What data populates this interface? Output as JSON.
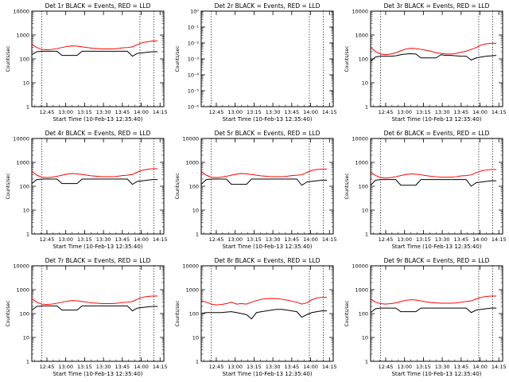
{
  "figure": {
    "xlabel": "Start Time (10-Feb-13 12:35:40)",
    "ylabel": "Counts/sec",
    "x_tick_labels": [
      "12:45",
      "13:00",
      "13:15",
      "13:30",
      "13:45",
      "14:00",
      "14:15"
    ],
    "y_tick_labels_decade": [
      "1",
      "10",
      "100",
      "1000",
      "10000"
    ],
    "y_tick_labels_small": [
      "10⁰",
      "10⁻¹",
      "10⁻²",
      "10⁻³",
      "10⁻⁴",
      "10⁻⁵",
      "10⁻⁶"
    ],
    "colors": {
      "events": "#000000",
      "lld": "#ff0000",
      "background": "#ffffff"
    }
  },
  "chart_data": [
    {
      "type": "line",
      "title": "Det 1r  BLACK = Events, RED = LLD",
      "ylim": [
        1,
        10000
      ],
      "yscale": "log",
      "x_minutes": [
        0,
        4,
        8,
        12,
        16,
        20,
        24,
        28,
        32,
        36,
        40,
        44,
        48,
        52,
        56,
        60,
        64,
        68,
        72,
        76,
        80,
        84,
        88,
        92,
        96,
        100
      ],
      "series": [
        {
          "name": "Events",
          "values": [
            150,
            200,
            210,
            210,
            210,
            210,
            140,
            140,
            140,
            140,
            210,
            210,
            210,
            210,
            210,
            210,
            210,
            210,
            210,
            210,
            130,
            170,
            180,
            190,
            200,
            200
          ]
        },
        {
          "name": "LLD",
          "values": [
            400,
            300,
            250,
            240,
            250,
            270,
            300,
            330,
            350,
            340,
            320,
            300,
            280,
            270,
            260,
            260,
            260,
            270,
            290,
            300,
            320,
            400,
            480,
            520,
            560,
            560
          ]
        }
      ]
    },
    {
      "type": "line",
      "title": "Det 2r  BLACK = Events, RED = LLD",
      "ylim": [
        1e-06,
        1
      ],
      "yscale": "log",
      "x_minutes": [],
      "series": []
    },
    {
      "type": "line",
      "title": "Det 3r  BLACK = Events, RED = LLD",
      "ylim": [
        1,
        10000
      ],
      "yscale": "log",
      "x_minutes": [
        0,
        4,
        8,
        12,
        16,
        20,
        24,
        28,
        32,
        36,
        40,
        44,
        48,
        52,
        56,
        60,
        64,
        68,
        72,
        76,
        80,
        84,
        88,
        92,
        96,
        100
      ],
      "series": [
        {
          "name": "Events",
          "values": [
            80,
            120,
            130,
            130,
            130,
            135,
            150,
            160,
            165,
            160,
            110,
            110,
            110,
            110,
            150,
            140,
            140,
            135,
            130,
            130,
            90,
            110,
            120,
            130,
            135,
            140
          ]
        },
        {
          "name": "LLD",
          "values": [
            300,
            200,
            160,
            150,
            160,
            180,
            220,
            260,
            280,
            270,
            250,
            230,
            210,
            180,
            170,
            160,
            160,
            170,
            190,
            210,
            250,
            300,
            380,
            430,
            450,
            450
          ]
        }
      ]
    },
    {
      "type": "line",
      "title": "Det 4r  BLACK = Events, RED = LLD",
      "ylim": [
        1,
        10000
      ],
      "yscale": "log",
      "x_minutes": [
        0,
        4,
        8,
        12,
        16,
        20,
        24,
        28,
        32,
        36,
        40,
        44,
        48,
        52,
        56,
        60,
        64,
        68,
        72,
        76,
        80,
        84,
        88,
        92,
        96,
        100
      ],
      "series": [
        {
          "name": "Events",
          "values": [
            130,
            190,
            200,
            200,
            200,
            200,
            130,
            130,
            130,
            130,
            200,
            200,
            200,
            200,
            200,
            200,
            200,
            200,
            200,
            200,
            120,
            160,
            170,
            180,
            190,
            190
          ]
        },
        {
          "name": "LLD",
          "values": [
            420,
            290,
            240,
            230,
            240,
            260,
            290,
            320,
            340,
            330,
            310,
            290,
            270,
            260,
            250,
            250,
            250,
            260,
            280,
            290,
            310,
            390,
            470,
            510,
            540,
            540
          ]
        }
      ]
    },
    {
      "type": "line",
      "title": "Det 5r  BLACK = Events, RED = LLD",
      "ylim": [
        1,
        10000
      ],
      "yscale": "log",
      "x_minutes": [
        0,
        4,
        8,
        12,
        16,
        20,
        24,
        28,
        32,
        36,
        40,
        44,
        48,
        52,
        56,
        60,
        64,
        68,
        72,
        76,
        80,
        84,
        88,
        92,
        96,
        100
      ],
      "series": [
        {
          "name": "Events",
          "values": [
            120,
            190,
            200,
            200,
            200,
            200,
            120,
            120,
            120,
            120,
            200,
            200,
            200,
            200,
            200,
            200,
            200,
            200,
            200,
            200,
            110,
            150,
            160,
            170,
            180,
            180
          ]
        },
        {
          "name": "LLD",
          "values": [
            400,
            290,
            240,
            230,
            240,
            260,
            290,
            320,
            340,
            330,
            310,
            290,
            270,
            260,
            250,
            250,
            250,
            260,
            280,
            290,
            300,
            380,
            460,
            500,
            520,
            520
          ]
        }
      ]
    },
    {
      "type": "line",
      "title": "Det 6r  BLACK = Events, RED = LLD",
      "ylim": [
        1,
        10000
      ],
      "yscale": "log",
      "x_minutes": [
        0,
        4,
        8,
        12,
        16,
        20,
        24,
        28,
        32,
        36,
        40,
        44,
        48,
        52,
        56,
        60,
        64,
        68,
        72,
        76,
        80,
        84,
        88,
        92,
        96,
        100
      ],
      "series": [
        {
          "name": "Events",
          "values": [
            110,
            180,
            190,
            190,
            190,
            190,
            110,
            110,
            110,
            110,
            190,
            190,
            190,
            190,
            190,
            190,
            190,
            190,
            190,
            190,
            100,
            140,
            150,
            160,
            170,
            170
          ]
        },
        {
          "name": "LLD",
          "values": [
            380,
            280,
            230,
            220,
            230,
            250,
            280,
            310,
            330,
            320,
            300,
            280,
            260,
            250,
            240,
            240,
            240,
            250,
            270,
            280,
            300,
            370,
            440,
            480,
            500,
            500
          ]
        }
      ]
    },
    {
      "type": "line",
      "title": "Det 7r  BLACK = Events, RED = LLD",
      "ylim": [
        1,
        10000
      ],
      "yscale": "log",
      "x_minutes": [
        0,
        4,
        8,
        12,
        16,
        20,
        24,
        28,
        32,
        36,
        40,
        44,
        48,
        52,
        56,
        60,
        64,
        68,
        72,
        76,
        80,
        84,
        88,
        92,
        96,
        100
      ],
      "series": [
        {
          "name": "Events",
          "values": [
            140,
            200,
            210,
            210,
            210,
            210,
            140,
            140,
            140,
            140,
            210,
            210,
            210,
            210,
            210,
            210,
            210,
            210,
            210,
            210,
            130,
            170,
            180,
            190,
            200,
            200
          ]
        },
        {
          "name": "LLD",
          "values": [
            420,
            300,
            250,
            240,
            250,
            270,
            300,
            330,
            350,
            340,
            320,
            300,
            280,
            270,
            260,
            260,
            260,
            270,
            290,
            300,
            320,
            400,
            480,
            520,
            540,
            540
          ]
        }
      ]
    },
    {
      "type": "line",
      "title": "Det 8r  BLACK = Events, RED = LLD",
      "ylim": [
        1,
        10000
      ],
      "yscale": "log",
      "x_minutes": [
        0,
        4,
        8,
        12,
        16,
        20,
        24,
        28,
        32,
        36,
        40,
        44,
        48,
        52,
        56,
        60,
        64,
        68,
        72,
        76,
        80,
        84,
        88,
        92,
        96,
        100
      ],
      "series": [
        {
          "name": "Events",
          "values": [
            100,
            110,
            110,
            110,
            110,
            115,
            120,
            110,
            100,
            90,
            60,
            110,
            120,
            130,
            140,
            150,
            150,
            140,
            130,
            120,
            70,
            90,
            110,
            120,
            130,
            130
          ]
        },
        {
          "name": "LLD",
          "values": [
            350,
            300,
            250,
            230,
            240,
            260,
            300,
            250,
            260,
            250,
            300,
            350,
            400,
            420,
            430,
            420,
            400,
            370,
            330,
            300,
            250,
            280,
            380,
            450,
            480,
            480
          ]
        }
      ]
    },
    {
      "type": "line",
      "title": "Det 9r  BLACK = Events, RED = LLD",
      "ylim": [
        1,
        10000
      ],
      "yscale": "log",
      "x_minutes": [
        0,
        4,
        8,
        12,
        16,
        20,
        24,
        28,
        32,
        36,
        40,
        44,
        48,
        52,
        56,
        60,
        64,
        68,
        72,
        76,
        80,
        84,
        88,
        92,
        96,
        100
      ],
      "series": [
        {
          "name": "Events",
          "values": [
            110,
            160,
            170,
            170,
            170,
            170,
            120,
            120,
            120,
            120,
            170,
            170,
            170,
            170,
            170,
            170,
            170,
            170,
            170,
            170,
            110,
            140,
            150,
            160,
            170,
            170
          ]
        },
        {
          "name": "LLD",
          "values": [
            400,
            300,
            260,
            250,
            260,
            280,
            320,
            360,
            380,
            370,
            340,
            310,
            290,
            280,
            270,
            270,
            270,
            280,
            300,
            320,
            340,
            410,
            480,
            520,
            540,
            540
          ]
        }
      ]
    }
  ]
}
